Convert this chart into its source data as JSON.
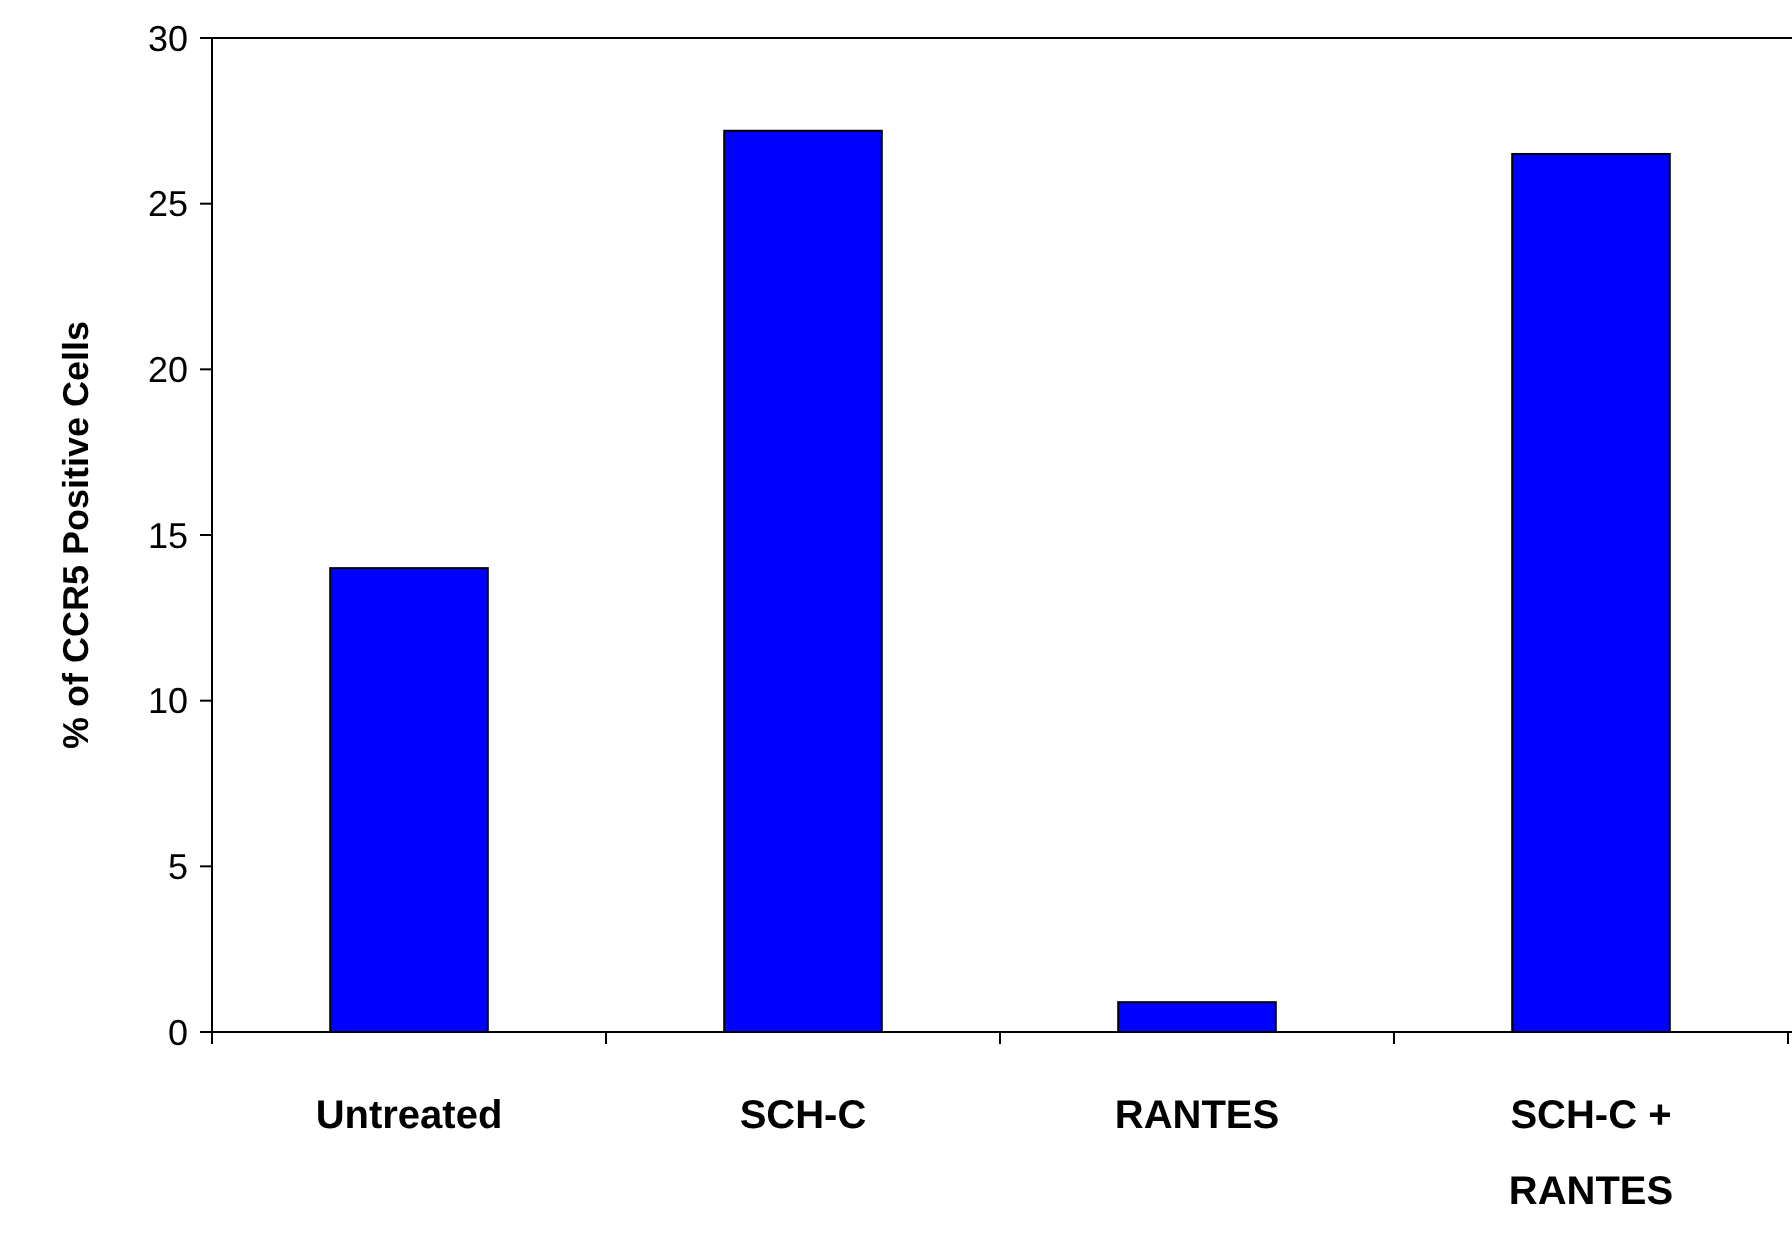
{
  "chart_data": {
    "type": "bar",
    "ylabel": "% of CCR5 Positive Cells",
    "categories": [
      "Untreated",
      "SCH-C",
      "RANTES",
      "SCH-C + RANTES"
    ],
    "values": [
      14.0,
      27.2,
      0.9,
      26.5
    ],
    "color": "#0000ff",
    "ylim": [
      0,
      30
    ],
    "yticks": [
      0,
      5,
      10,
      15,
      20,
      25,
      30
    ],
    "grid": false
  }
}
